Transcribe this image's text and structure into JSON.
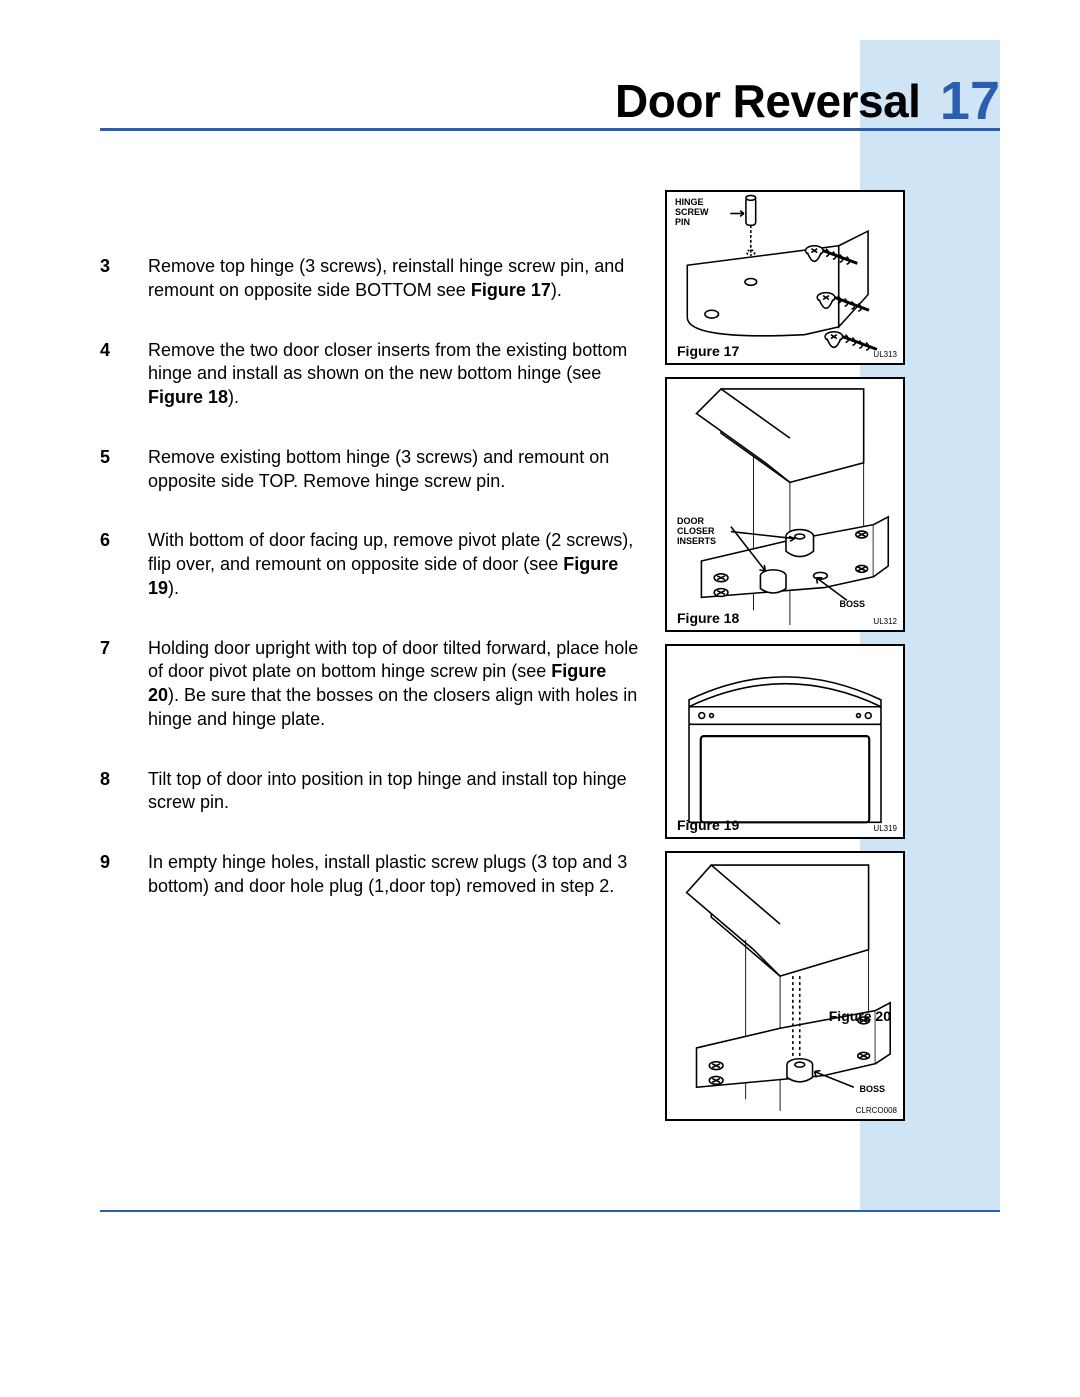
{
  "page": {
    "title": "Door Reversal",
    "number": "17",
    "accent_color": "#2b5fad",
    "sidebar_color": "#cfe4f5"
  },
  "steps": [
    {
      "num": "3",
      "html": "Remove top hinge (3 screws), reinstall hinge screw pin, and remount on opposite side BOTTOM see <b>Figure 17</b>)."
    },
    {
      "num": "4",
      "html": "Remove the two door closer inserts from the existing bottom hinge and install as shown on the new bottom hinge (see <b>Figure 18</b>)."
    },
    {
      "num": "5",
      "html": "Remove existing bottom hinge (3 screws) and remount on opposite side TOP. Remove hinge screw pin."
    },
    {
      "num": "6",
      "html": "With bottom of door facing up, remove pivot plate (2 screws), flip over, and remount on opposite side of door (see <b>Figure 19</b>)."
    },
    {
      "num": "7",
      "html": "Holding door upright with top of door tilted forward, place hole of door pivot plate on bottom hinge screw pin (see <b>Figure 20</b>). Be sure that the bosses on the closers align with holes in hinge and hinge plate."
    },
    {
      "num": "8",
      "html": "Tilt top of door into position in top hinge and install top hinge screw pin."
    },
    {
      "num": "9",
      "html": "In empty hinge holes, install plastic screw plugs (3 top and 3 bottom) and door hole plug (1,door top) removed in step 2."
    }
  ],
  "figures": {
    "f17": {
      "caption": "Figure 17",
      "code": "UL313",
      "labels": {
        "hinge_screw_pin": "HINGE\nSCREW\nPIN"
      }
    },
    "f18": {
      "caption": "Figure 18",
      "code": "UL312",
      "labels": {
        "door_closer_inserts": "DOOR\nCLOSER\nINSERTS",
        "boss": "BOSS"
      }
    },
    "f19": {
      "caption": "Figure 19",
      "code": "UL319"
    },
    "f20": {
      "caption": "Figure 20",
      "code": "CLRCO008",
      "labels": {
        "boss": "BOSS"
      }
    }
  }
}
